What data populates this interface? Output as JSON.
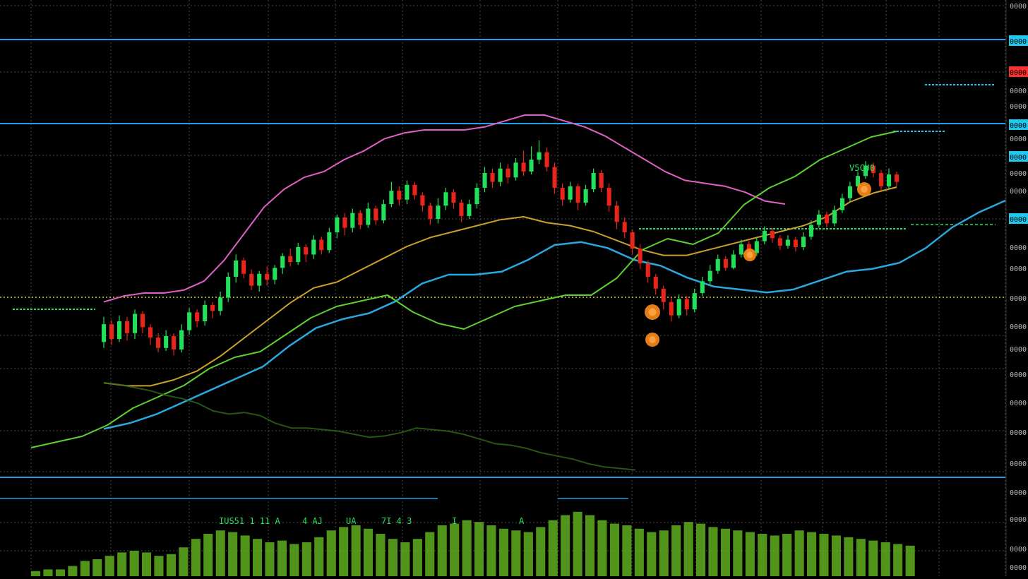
{
  "chart_data": {
    "type": "candlestick",
    "title": "",
    "xlabel": "",
    "ylabel": "",
    "grid": true,
    "legend": "none",
    "colors": {
      "background": "#000000",
      "grid": "#4a4a4a",
      "bull": "#22e05a",
      "bear": "#e8241b",
      "upper_band": "#e060c8",
      "ma_fast": "#2aa8e0",
      "ma_slow": "#c9a02a",
      "osc": "#5ed132",
      "volume": "#5fae1e",
      "level_line": "#1ea0e6",
      "price_tag": "#1ec8f0",
      "price_tag_alert": "#ff3030",
      "dotted_level": "#d8d020",
      "signal_dot": "#ff8c1a"
    },
    "axis_labels": [
      "0000",
      "0000",
      "0000",
      "0000",
      "0000",
      "0000",
      "0000",
      "0000",
      "0000",
      "0000",
      "0000",
      "0000",
      "0000",
      "0000",
      "0000",
      "0000",
      "0000",
      "0000"
    ],
    "chart_annotations": [
      "V5CU0",
      "IUS51 1 11 A",
      "4 AJ",
      "UA",
      "7I 4 3",
      "I",
      "A"
    ],
    "ylim": [
      0,
      100
    ],
    "candles": [
      [
        18.0,
        24.0,
        16.0,
        26.5
      ],
      [
        24.0,
        19.0,
        17.0,
        25.5
      ],
      [
        19.0,
        25.0,
        18.0,
        27.0
      ],
      [
        25.0,
        21.0,
        18.5,
        26.5
      ],
      [
        21.0,
        27.5,
        19.0,
        29.0
      ],
      [
        27.5,
        23.0,
        21.0,
        28.5
      ],
      [
        23.0,
        19.5,
        17.0,
        24.0
      ],
      [
        19.5,
        16.0,
        14.5,
        21.0
      ],
      [
        16.0,
        20.0,
        15.0,
        22.0
      ],
      [
        20.0,
        15.5,
        13.5,
        21.0
      ],
      [
        15.5,
        22.0,
        14.5,
        24.0
      ],
      [
        22.0,
        28.0,
        20.5,
        29.5
      ],
      [
        28.0,
        25.0,
        23.0,
        29.0
      ],
      [
        25.0,
        30.5,
        23.5,
        32.0
      ],
      [
        30.5,
        28.5,
        26.0,
        31.5
      ],
      [
        28.5,
        33.0,
        27.0,
        35.0
      ],
      [
        33.0,
        40.0,
        31.5,
        41.5
      ],
      [
        40.0,
        45.5,
        38.0,
        47.5
      ],
      [
        45.5,
        41.0,
        39.5,
        46.5
      ],
      [
        41.0,
        37.0,
        35.5,
        42.5
      ],
      [
        37.0,
        41.0,
        35.0,
        42.0
      ],
      [
        41.0,
        39.0,
        37.0,
        43.5
      ],
      [
        39.0,
        43.0,
        37.5,
        44.0
      ],
      [
        43.0,
        47.0,
        41.0,
        48.0
      ],
      [
        47.0,
        45.0,
        43.5,
        49.5
      ],
      [
        45.0,
        50.0,
        44.0,
        51.5
      ],
      [
        50.0,
        47.5,
        45.0,
        51.0
      ],
      [
        47.5,
        52.5,
        46.0,
        54.0
      ],
      [
        52.5,
        49.0,
        47.5,
        53.5
      ],
      [
        49.0,
        55.0,
        48.0,
        56.5
      ],
      [
        55.0,
        60.0,
        53.0,
        61.0
      ],
      [
        60.0,
        56.5,
        54.0,
        61.5
      ],
      [
        56.5,
        61.5,
        55.0,
        63.0
      ],
      [
        61.5,
        57.5,
        56.0,
        62.5
      ],
      [
        57.5,
        63.0,
        56.5,
        65.0
      ],
      [
        63.0,
        59.0,
        57.5,
        64.0
      ],
      [
        59.0,
        64.5,
        58.0,
        66.0
      ],
      [
        64.5,
        69.0,
        63.5,
        72.0
      ],
      [
        69.0,
        66.0,
        64.0,
        70.5
      ],
      [
        66.0,
        71.0,
        64.5,
        72.5
      ],
      [
        71.0,
        67.5,
        66.0,
        72.0
      ],
      [
        67.5,
        64.0,
        62.0,
        68.5
      ],
      [
        64.0,
        59.5,
        57.5,
        65.0
      ],
      [
        59.5,
        64.0,
        58.0,
        66.5
      ],
      [
        64.0,
        68.5,
        62.5,
        70.0
      ],
      [
        68.5,
        65.0,
        63.0,
        69.5
      ],
      [
        65.0,
        60.5,
        58.5,
        66.0
      ],
      [
        60.5,
        64.5,
        59.5,
        66.0
      ],
      [
        64.5,
        70.0,
        63.0,
        71.5
      ],
      [
        70.0,
        75.0,
        68.5,
        77.0
      ],
      [
        75.0,
        72.0,
        70.0,
        76.5
      ],
      [
        72.0,
        76.5,
        70.5,
        78.5
      ],
      [
        76.5,
        73.5,
        71.5,
        78.0
      ],
      [
        73.5,
        78.5,
        72.5,
        80.0
      ],
      [
        78.5,
        75.5,
        74.0,
        82.5
      ],
      [
        75.5,
        79.5,
        74.5,
        84.0
      ],
      [
        79.5,
        82.0,
        78.0,
        86.0
      ],
      [
        82.0,
        77.0,
        75.5,
        83.5
      ],
      [
        77.0,
        70.0,
        68.0,
        78.5
      ],
      [
        70.0,
        66.0,
        64.0,
        71.5
      ],
      [
        66.0,
        70.5,
        65.0,
        72.0
      ],
      [
        70.5,
        65.0,
        62.5,
        71.5
      ],
      [
        65.0,
        69.5,
        64.0,
        71.0
      ],
      [
        69.5,
        75.0,
        68.5,
        76.5
      ],
      [
        75.0,
        70.0,
        68.5,
        76.0
      ],
      [
        70.0,
        64.0,
        62.0,
        71.5
      ],
      [
        64.0,
        58.5,
        56.0,
        65.5
      ],
      [
        58.5,
        55.0,
        53.0,
        60.0
      ],
      [
        55.0,
        49.5,
        47.5,
        56.0
      ],
      [
        49.5,
        44.5,
        42.5,
        51.0
      ],
      [
        44.5,
        40.0,
        38.0,
        45.5
      ],
      [
        40.0,
        36.0,
        34.0,
        41.0
      ],
      [
        36.0,
        31.5,
        29.0,
        37.0
      ],
      [
        31.5,
        27.0,
        25.0,
        33.0
      ],
      [
        27.0,
        32.5,
        26.0,
        34.0
      ],
      [
        32.5,
        29.0,
        27.0,
        33.5
      ],
      [
        29.0,
        34.5,
        28.0,
        36.0
      ],
      [
        34.5,
        38.5,
        33.5,
        40.0
      ],
      [
        38.5,
        42.0,
        37.0,
        44.0
      ],
      [
        42.0,
        46.0,
        41.0,
        47.5
      ],
      [
        46.0,
        43.0,
        42.0,
        47.0
      ],
      [
        43.0,
        47.5,
        42.5,
        49.0
      ],
      [
        47.5,
        51.0,
        46.5,
        52.5
      ],
      [
        51.0,
        48.0,
        47.0,
        52.0
      ],
      [
        48.0,
        52.0,
        47.0,
        53.5
      ],
      [
        52.0,
        55.5,
        51.0,
        57.0
      ],
      [
        55.5,
        53.0,
        51.5,
        56.5
      ],
      [
        53.0,
        50.5,
        49.0,
        54.0
      ],
      [
        50.5,
        52.5,
        49.5,
        54.0
      ],
      [
        52.5,
        50.0,
        48.5,
        53.5
      ],
      [
        50.0,
        53.5,
        49.0,
        55.0
      ],
      [
        53.5,
        57.5,
        52.5,
        59.0
      ],
      [
        57.5,
        61.0,
        56.5,
        62.5
      ],
      [
        61.0,
        58.0,
        56.5,
        62.0
      ],
      [
        58.0,
        62.5,
        57.0,
        64.0
      ],
      [
        62.5,
        66.5,
        61.5,
        68.0
      ],
      [
        66.5,
        70.5,
        65.5,
        72.0
      ],
      [
        70.5,
        74.0,
        69.5,
        75.5
      ],
      [
        74.0,
        77.5,
        73.0,
        79.0
      ],
      [
        77.5,
        75.0,
        73.5,
        78.5
      ],
      [
        75.0,
        70.5,
        69.0,
        76.0
      ],
      [
        70.5,
        74.5,
        69.5,
        76.5
      ],
      [
        74.5,
        72.0,
        70.5,
        75.5
      ]
    ],
    "upper_band": [
      22,
      24,
      25,
      25,
      26,
      29,
      36,
      45,
      54,
      60,
      64,
      66,
      70,
      73,
      77,
      79,
      80,
      80,
      80,
      81,
      83,
      85,
      85,
      83,
      81,
      78,
      74,
      70,
      66,
      63,
      62,
      61,
      59,
      56,
      55
    ],
    "ma_fast": [
      3,
      5,
      8,
      12,
      16,
      20,
      24,
      31,
      37,
      40,
      42,
      46,
      52,
      55,
      55,
      56,
      60,
      65,
      66,
      64,
      60,
      58,
      54,
      51,
      50,
      49,
      50,
      53,
      56,
      57,
      59,
      64,
      71,
      76,
      80
    ],
    "ma_slow": [
      9,
      8,
      8,
      10,
      13,
      18,
      24,
      30,
      36,
      41,
      43,
      47,
      51,
      55,
      58,
      60,
      62,
      64,
      65,
      63,
      62,
      60,
      57,
      54,
      52,
      52,
      54,
      56,
      58,
      60,
      62,
      65,
      70,
      73,
      75
    ],
    "osc": [
      2,
      3,
      4,
      6,
      9,
      11,
      13,
      16,
      18,
      19,
      22,
      25,
      27,
      28,
      29,
      26,
      24,
      23,
      25,
      27,
      28,
      29,
      29,
      32,
      37,
      39,
      38,
      40,
      45,
      48,
      50,
      53,
      55,
      57,
      58
    ],
    "volume": [
      3,
      4,
      4,
      6,
      9,
      10,
      12,
      14,
      15,
      14,
      12,
      13,
      17,
      22,
      25,
      27,
      26,
      24,
      22,
      20,
      21,
      19,
      20,
      23,
      27,
      29,
      30,
      28,
      25,
      22,
      20,
      22,
      26,
      30,
      31,
      33,
      32,
      30,
      28,
      27,
      26,
      29,
      33,
      36,
      38,
      36,
      33,
      31,
      30,
      28,
      26,
      27,
      30,
      32,
      31,
      29,
      28,
      27,
      26,
      25,
      24,
      25,
      27,
      26,
      25,
      24,
      23,
      22,
      21,
      20,
      19,
      18
    ]
  }
}
